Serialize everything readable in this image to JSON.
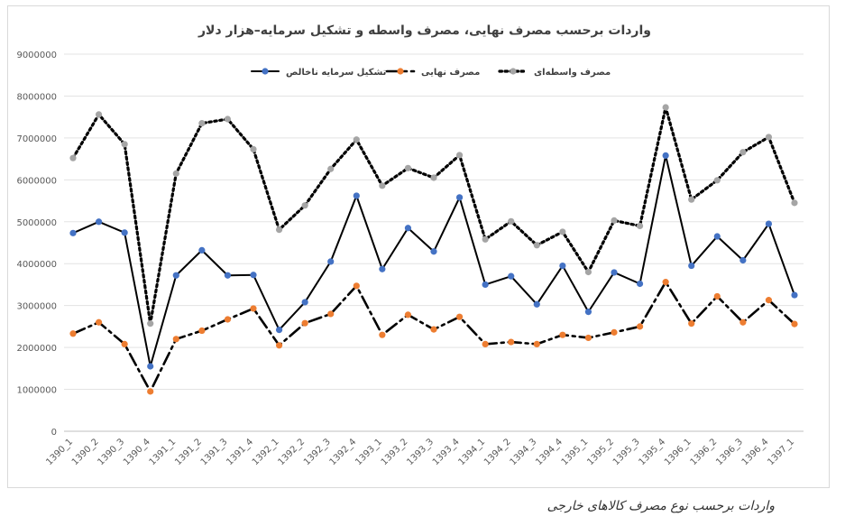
{
  "caption": "واردات برحسب نوع مصرف کالاهای خارجی",
  "chart_data": {
    "type": "line",
    "title": "واردات برحسب مصرف نهایی، مصرف واسطه و تشکیل سرمایه–هزار دلار",
    "xlabel": "",
    "ylabel": "",
    "ylim": [
      0,
      9000000
    ],
    "yticks": [
      0,
      1000000,
      2000000,
      3000000,
      4000000,
      5000000,
      6000000,
      7000000,
      8000000,
      9000000
    ],
    "grid": true,
    "legend": "top",
    "categories": [
      "1390_1",
      "1390_2",
      "1390_3",
      "1390_4",
      "1391_1",
      "1391_2",
      "1391_3",
      "1391_4",
      "1392_1",
      "1392_2",
      "1392_3",
      "1392_4",
      "1393_1",
      "1393_2",
      "1393_3",
      "1393_4",
      "1394_1",
      "1394_2",
      "1394_3",
      "1394_4",
      "1395_1",
      "1395_2",
      "1395_3",
      "1395_4",
      "1396_1",
      "1396_2",
      "1396_3",
      "1396_4",
      "1397_1"
    ],
    "series": [
      {
        "name": "تشکیل سرمایه ناخالص",
        "color": "#000000",
        "marker_color": "#4472C4",
        "style": "solid",
        "values": [
          4730000,
          5000000,
          4740000,
          1550000,
          3720000,
          4320000,
          3720000,
          3730000,
          2420000,
          3080000,
          4050000,
          5620000,
          3870000,
          4850000,
          4290000,
          5580000,
          3500000,
          3700000,
          3030000,
          3950000,
          2850000,
          3790000,
          3520000,
          6580000,
          3950000,
          4650000,
          4080000,
          4950000,
          3250000
        ]
      },
      {
        "name": "مصرف نهایی",
        "color": "#000000",
        "marker_color": "#ED7D31",
        "style": "dashdot",
        "values": [
          2330000,
          2600000,
          2080000,
          950000,
          2200000,
          2400000,
          2670000,
          2930000,
          2050000,
          2580000,
          2800000,
          3470000,
          2300000,
          2780000,
          2430000,
          2730000,
          2080000,
          2130000,
          2080000,
          2300000,
          2230000,
          2360000,
          2500000,
          3560000,
          2570000,
          3220000,
          2600000,
          3130000,
          2560000
        ]
      },
      {
        "name": "مصرف واسطه‌ای",
        "color": "#000000",
        "marker_color": "#A5A5A5",
        "style": "dotted",
        "values": [
          6520000,
          7560000,
          6850000,
          2570000,
          6150000,
          7350000,
          7450000,
          6730000,
          4810000,
          5390000,
          6260000,
          6960000,
          5860000,
          6280000,
          6050000,
          6590000,
          4580000,
          5010000,
          4440000,
          4760000,
          3800000,
          5030000,
          4900000,
          7730000,
          5530000,
          5990000,
          6660000,
          7020000,
          5450000
        ]
      }
    ]
  }
}
